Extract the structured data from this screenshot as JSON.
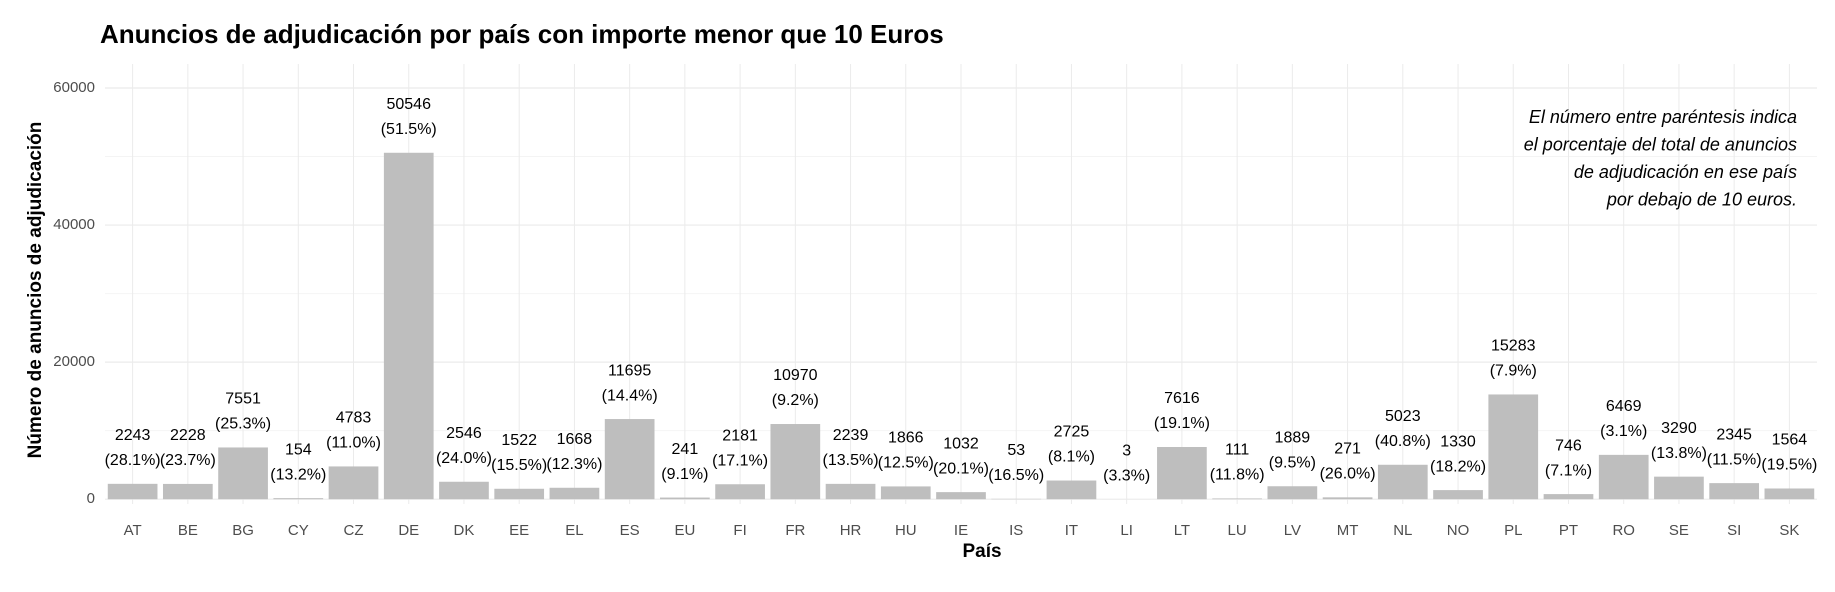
{
  "chart_data": {
    "type": "bar",
    "title": "Anuncios de adjudicación por país con importe menor que 10 Euros",
    "x_label": "País",
    "y_label": "Número de anuncios de adjudicación",
    "annotation": [
      "El número entre paréntesis indica",
      "el porcentaje del total de anuncios",
      "de adjudicación en ese país",
      "por debajo de 10 euros."
    ],
    "categories": [
      "AT",
      "BE",
      "BG",
      "CY",
      "CZ",
      "DE",
      "DK",
      "EE",
      "EL",
      "ES",
      "EU",
      "FI",
      "FR",
      "HR",
      "HU",
      "IE",
      "IS",
      "IT",
      "LI",
      "LT",
      "LU",
      "LV",
      "MT",
      "NL",
      "NO",
      "PL",
      "PT",
      "RO",
      "SE",
      "SI",
      "SK"
    ],
    "values": [
      2243,
      2228,
      7551,
      154,
      4783,
      50546,
      2546,
      1522,
      1668,
      11695,
      241,
      2181,
      10970,
      2239,
      1866,
      1032,
      53,
      2725,
      3,
      7616,
      111,
      1889,
      271,
      5023,
      1330,
      15283,
      746,
      6469,
      3290,
      2345,
      1564
    ],
    "percent_labels": [
      "(28.1%)",
      "(23.7%)",
      "(25.3%)",
      "(13.2%)",
      "(11.0%)",
      "(51.5%)",
      "(24.0%)",
      "(15.5%)",
      "(12.3%)",
      "(14.4%)",
      "(9.1%)",
      "(17.1%)",
      "(9.2%)",
      "(13.5%)",
      "(12.5%)",
      "(20.1%)",
      "(16.5%)",
      "(8.1%)",
      "(3.3%)",
      "(19.1%)",
      "(11.8%)",
      "(9.5%)",
      "(26.0%)",
      "(40.8%)",
      "(18.2%)",
      "(7.9%)",
      "(7.1%)",
      "(3.1%)",
      "(13.8%)",
      "(11.5%)",
      "(19.5%)"
    ],
    "color": "#bebebe",
    "ylim": [
      -700,
      63500
    ],
    "yticks": [
      0,
      20000,
      40000,
      60000
    ],
    "minor_yticks": [
      10000,
      30000,
      50000
    ],
    "grid": true
  }
}
